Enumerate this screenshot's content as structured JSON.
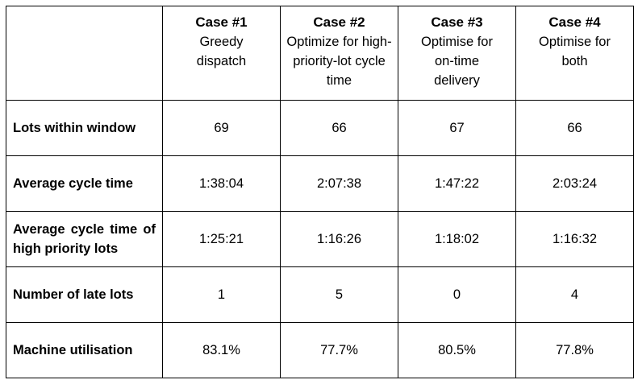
{
  "table": {
    "corner": "",
    "cases": [
      {
        "title": "Case #1",
        "description": "Greedy dispatch"
      },
      {
        "title": "Case #2",
        "description": "Optimize for high-priority-lot cycle time"
      },
      {
        "title": "Case #3",
        "description": "Optimise for on-time delivery"
      },
      {
        "title": "Case #4",
        "description": "Optimise for both"
      }
    ],
    "rows": [
      {
        "label": "Lots within window",
        "values": [
          "69",
          "66",
          "67",
          "66"
        ]
      },
      {
        "label": "Average cycle time",
        "values": [
          "1:38:04",
          "2:07:38",
          "1:47:22",
          "2:03:24"
        ]
      },
      {
        "label": "Average cycle time of high priority lots",
        "values": [
          "1:25:21",
          "1:16:26",
          "1:18:02",
          "1:16:32"
        ]
      },
      {
        "label": "Number of late lots",
        "values": [
          "1",
          "5",
          "0",
          "4"
        ]
      },
      {
        "label": "Machine utilisation",
        "values": [
          "83.1%",
          "77.7%",
          "80.5%",
          "77.8%"
        ]
      }
    ]
  },
  "colors": {
    "border": "#000000",
    "background": "#ffffff",
    "text": "#000000"
  }
}
